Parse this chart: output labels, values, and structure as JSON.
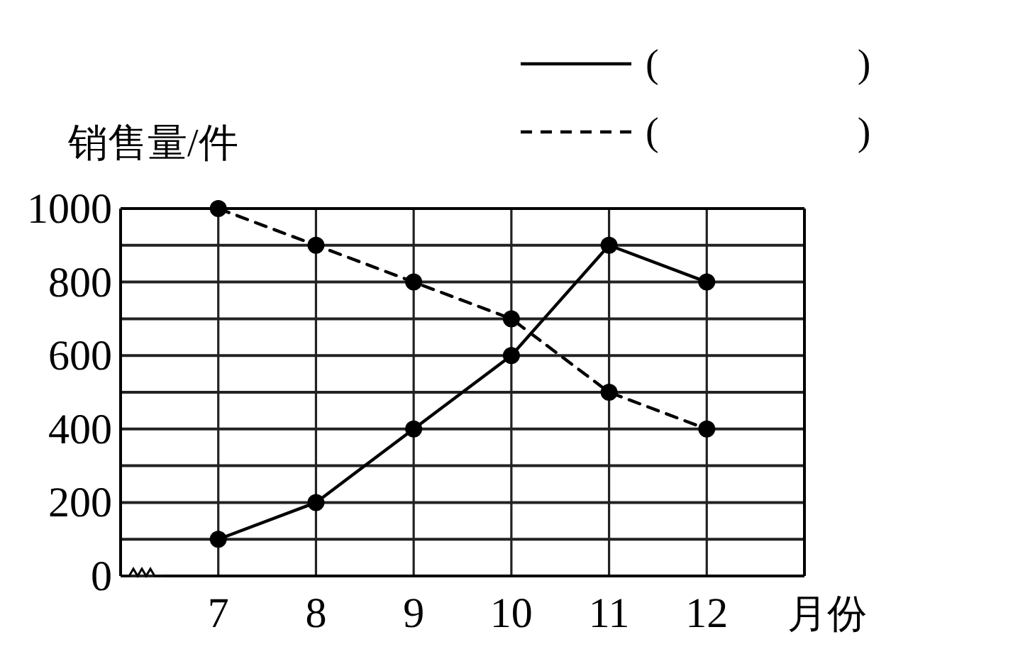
{
  "chart_data": {
    "type": "line",
    "xlabel": "月份",
    "ylabel": "销售量/件",
    "x": [
      7,
      8,
      9,
      10,
      11,
      12
    ],
    "series": [
      {
        "name": "(　　　　　)",
        "color": "#000000",
        "line_style": "solid",
        "values": [
          100,
          200,
          400,
          600,
          900,
          800
        ]
      },
      {
        "name": "(　　　　　)",
        "color": "#000000",
        "line_style": "dashed",
        "values": [
          1000,
          900,
          800,
          700,
          500,
          400
        ]
      }
    ],
    "xlim": [
      6,
      13
    ],
    "xticks": [
      7,
      8,
      9,
      10,
      11,
      12
    ],
    "ylim": [
      0,
      1000
    ],
    "yticks": [
      0,
      {
        "value": 100,
        "label": null
      },
      200,
      {
        "value": 300,
        "label": null
      },
      400,
      {
        "value": 500,
        "label": null
      },
      600,
      {
        "value": 700,
        "label": null
      },
      800,
      {
        "value": 900,
        "label": null
      },
      1000
    ],
    "grid": true,
    "legend": "top right",
    "marker": "circle"
  }
}
